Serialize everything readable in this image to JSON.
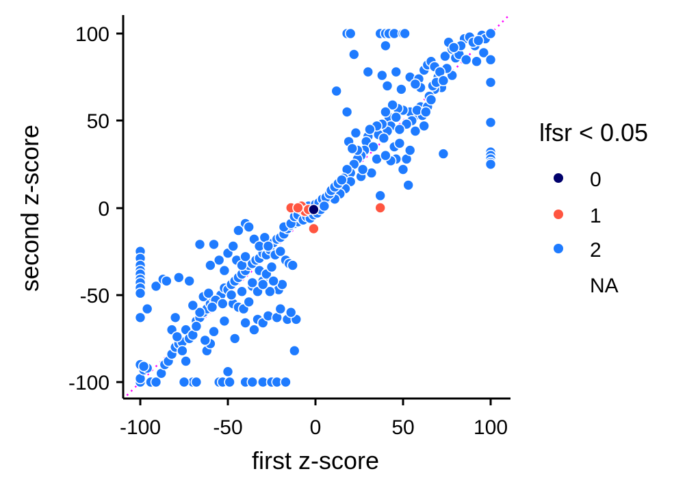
{
  "chart_data": {
    "type": "scatter",
    "title": "",
    "xlabel": "first z-score",
    "ylabel": "second z-score",
    "xlim": [
      -110,
      110
    ],
    "ylim": [
      -110,
      110
    ],
    "x_ticks": [
      "-100",
      "-50",
      "0",
      "50",
      "100"
    ],
    "y_ticks": [
      "100",
      "50",
      "0",
      "-50",
      "-100"
    ],
    "grid": false,
    "reference_line": {
      "type": "identity",
      "style": "dotted",
      "color": "#ff00ff"
    },
    "legend": {
      "title": "lfsr < 0.05",
      "placement": "right",
      "entries": [
        {
          "label": "0",
          "color": "#00006b"
        },
        {
          "label": "1",
          "color": "#ff5540"
        },
        {
          "label": "2",
          "color": "#1e7bff"
        },
        {
          "label": "NA",
          "color": ""
        }
      ]
    },
    "series": [
      {
        "name": "2",
        "color": "#1e7bff",
        "points": [
          [
            18,
            100
          ],
          [
            20,
            100
          ],
          [
            22,
            88
          ],
          [
            37,
            100
          ],
          [
            40,
            100
          ],
          [
            42,
            100
          ],
          [
            45,
            100
          ],
          [
            50,
            100
          ],
          [
            51,
            100
          ],
          [
            40,
            93
          ],
          [
            30,
            78
          ],
          [
            12,
            67
          ],
          [
            38,
            76
          ],
          [
            41,
            70
          ],
          [
            46,
            78
          ],
          [
            49,
            68
          ],
          [
            54,
            75
          ],
          [
            59,
            74
          ],
          [
            60,
            69
          ],
          [
            62,
            79
          ],
          [
            57,
            71
          ],
          [
            64,
            82
          ],
          [
            66,
            84
          ],
          [
            68,
            81
          ],
          [
            74,
            87
          ],
          [
            78,
            91
          ],
          [
            85,
            97
          ],
          [
            88,
            98
          ],
          [
            91,
            93
          ],
          [
            95,
            99
          ],
          [
            97,
            97
          ],
          [
            100,
            100
          ],
          [
            96,
            89
          ],
          [
            100,
            85
          ],
          [
            92,
            84
          ],
          [
            100,
            72
          ],
          [
            100,
            49
          ],
          [
            100,
            32
          ],
          [
            100,
            30
          ],
          [
            100,
            28
          ],
          [
            100,
            26
          ],
          [
            100,
            25
          ],
          [
            73,
            31
          ],
          [
            53,
            13
          ],
          [
            45,
            35
          ],
          [
            48,
            37
          ],
          [
            72,
            69
          ],
          [
            78,
            76
          ],
          [
            80,
            86
          ],
          [
            68,
            68
          ],
          [
            65,
            64
          ],
          [
            60,
            58
          ],
          [
            56,
            52
          ],
          [
            54,
            55
          ],
          [
            50,
            56
          ],
          [
            47,
            57
          ],
          [
            44,
            59
          ],
          [
            42,
            52
          ],
          [
            43,
            47
          ],
          [
            41,
            44
          ],
          [
            38,
            48
          ],
          [
            36,
            42
          ],
          [
            35,
            47
          ],
          [
            30,
            41
          ],
          [
            31,
            45
          ],
          [
            29,
            38
          ],
          [
            55,
            50
          ],
          [
            57,
            44
          ],
          [
            62,
            47
          ],
          [
            61,
            53
          ],
          [
            58,
            56
          ],
          [
            52,
            48
          ],
          [
            48,
            45
          ],
          [
            46,
            52
          ],
          [
            40,
            55
          ],
          [
            39,
            40
          ],
          [
            33,
            35
          ],
          [
            28,
            33
          ],
          [
            26,
            30
          ],
          [
            24,
            28
          ],
          [
            22,
            25
          ],
          [
            20,
            20
          ],
          [
            18,
            22
          ],
          [
            16,
            17
          ],
          [
            14,
            15
          ],
          [
            12,
            11
          ],
          [
            10,
            9
          ],
          [
            8,
            6
          ],
          [
            6,
            5
          ],
          [
            4,
            2
          ],
          [
            2,
            1
          ],
          [
            19,
            38
          ],
          [
            18,
            55
          ],
          [
            23,
            43
          ],
          [
            26,
            18
          ],
          [
            20,
            15
          ],
          [
            17,
            11
          ],
          [
            14,
            8
          ],
          [
            11,
            5
          ],
          [
            37,
            7
          ],
          [
            32,
            20
          ],
          [
            27,
            22
          ],
          [
            24,
            33
          ],
          [
            21,
            34
          ],
          [
            35,
            28
          ],
          [
            46,
            28
          ],
          [
            50,
            22
          ],
          [
            52,
            28
          ],
          [
            54,
            33
          ],
          [
            43,
            27
          ],
          [
            40,
            30
          ],
          [
            70,
            75
          ],
          [
            75,
            80
          ],
          [
            82,
            88
          ],
          [
            86,
            85
          ],
          [
            83,
            93
          ],
          [
            76,
            95
          ],
          [
            79,
            92
          ],
          [
            90,
            95
          ],
          [
            93,
            96
          ],
          [
            64,
            58
          ],
          [
            66,
            62
          ],
          [
            63,
            55
          ],
          [
            67,
            70
          ],
          [
            69,
            72
          ],
          [
            71,
            78
          ],
          [
            73,
            73
          ],
          [
            -100,
            -100
          ],
          [
            -100,
            -98
          ],
          [
            -98,
            -93
          ],
          [
            -96,
            -92
          ],
          [
            -94,
            -100
          ],
          [
            -91,
            -100
          ],
          [
            -88,
            -95
          ],
          [
            -86,
            -90
          ],
          [
            -84,
            -88
          ],
          [
            -82,
            -84
          ],
          [
            -80,
            -80
          ],
          [
            -78,
            -78
          ],
          [
            -76,
            -77
          ],
          [
            -74,
            -70
          ],
          [
            -72,
            -75
          ],
          [
            -70,
            -73
          ],
          [
            -68,
            -65
          ],
          [
            -66,
            -63
          ],
          [
            -64,
            -60
          ],
          [
            -62,
            -58
          ],
          [
            -60,
            -55
          ],
          [
            -58,
            -52
          ],
          [
            -56,
            -52
          ],
          [
            -54,
            -50
          ],
          [
            -52,
            -46
          ],
          [
            -50,
            -47
          ],
          [
            -48,
            -44
          ],
          [
            -46,
            -42
          ],
          [
            -44,
            -40
          ],
          [
            -42,
            -38
          ],
          [
            -40,
            -36
          ],
          [
            -38,
            -33
          ],
          [
            -36,
            -32
          ],
          [
            -34,
            -30
          ],
          [
            -32,
            -29
          ],
          [
            -30,
            -26
          ],
          [
            -28,
            -27
          ],
          [
            -26,
            -24
          ],
          [
            -24,
            -20
          ],
          [
            -22,
            -18
          ],
          [
            -20,
            -17
          ],
          [
            -18,
            -15
          ],
          [
            -16,
            -12
          ],
          [
            -14,
            -10
          ],
          [
            -12,
            -9
          ],
          [
            -10,
            -8
          ],
          [
            -8,
            -6
          ],
          [
            -6,
            -4
          ],
          [
            -4,
            -3
          ],
          [
            -2,
            -2
          ],
          [
            -100,
            -25
          ],
          [
            -100,
            -29
          ],
          [
            -100,
            -33
          ],
          [
            -100,
            -36
          ],
          [
            -100,
            -38
          ],
          [
            -100,
            -41
          ],
          [
            -100,
            -43
          ],
          [
            -100,
            -46
          ],
          [
            -100,
            -49
          ],
          [
            -100,
            -63
          ],
          [
            -100,
            -90
          ],
          [
            -98,
            -91
          ],
          [
            -96,
            -58
          ],
          [
            -91,
            -45
          ],
          [
            -87,
            -41
          ],
          [
            -85,
            -42
          ],
          [
            -78,
            -40
          ],
          [
            -72,
            -42
          ],
          [
            -80,
            -63
          ],
          [
            -82,
            -70
          ],
          [
            -79,
            -74
          ],
          [
            -76,
            -82
          ],
          [
            -74,
            -88
          ],
          [
            -70,
            -100
          ],
          [
            -68,
            -100
          ],
          [
            -75,
            -100
          ],
          [
            -55,
            -100
          ],
          [
            -53,
            -100
          ],
          [
            -49,
            -100
          ],
          [
            -40,
            -100
          ],
          [
            -36,
            -100
          ],
          [
            -30,
            -100
          ],
          [
            -25,
            -100
          ],
          [
            -22,
            -100
          ],
          [
            -17,
            -100
          ],
          [
            -50,
            -94
          ],
          [
            -62,
            -82
          ],
          [
            -60,
            -78
          ],
          [
            -58,
            -71
          ],
          [
            -63,
            -76
          ],
          [
            -68,
            -68
          ],
          [
            -64,
            -51
          ],
          [
            -61,
            -49
          ],
          [
            -57,
            -53
          ],
          [
            -52,
            -65
          ],
          [
            -46,
            -75
          ],
          [
            -47,
            -55
          ],
          [
            -44,
            -57
          ],
          [
            -41,
            -58
          ],
          [
            -38,
            -54
          ],
          [
            -36,
            -45
          ],
          [
            -33,
            -48
          ],
          [
            -30,
            -42
          ],
          [
            -32,
            -36
          ],
          [
            -28,
            -38
          ],
          [
            -25,
            -34
          ],
          [
            -40,
            -66
          ],
          [
            -35,
            -70
          ],
          [
            -33,
            -64
          ],
          [
            -30,
            -66
          ],
          [
            -27,
            -62
          ],
          [
            -22,
            -63
          ],
          [
            -20,
            -58
          ],
          [
            -16,
            -64
          ],
          [
            -11,
            -64
          ],
          [
            -12,
            -82
          ],
          [
            -14,
            -60
          ],
          [
            -21,
            -47
          ],
          [
            -19,
            -44
          ],
          [
            -24,
            -42
          ],
          [
            -26,
            -48
          ],
          [
            -55,
            -30
          ],
          [
            -50,
            -26
          ],
          [
            -47,
            -22
          ],
          [
            -45,
            -30
          ],
          [
            -42,
            -33
          ],
          [
            -40,
            -9
          ],
          [
            -38,
            -11
          ],
          [
            -35,
            -18
          ],
          [
            -32,
            -22
          ],
          [
            -29,
            -17
          ],
          [
            -27,
            -22
          ],
          [
            -23,
            -27
          ],
          [
            -20,
            -25
          ],
          [
            -17,
            -30
          ],
          [
            -15,
            -32
          ],
          [
            -13,
            -33
          ],
          [
            -18,
            -11
          ],
          [
            -14,
            -9
          ],
          [
            -12,
            -5
          ],
          [
            -10,
            -4
          ],
          [
            -30,
            -44
          ],
          [
            -36,
            -43
          ],
          [
            -42,
            -48
          ],
          [
            -48,
            -50
          ],
          [
            -53,
            -55
          ],
          [
            -59,
            -57
          ],
          [
            -66,
            -60
          ],
          [
            -70,
            -56
          ],
          [
            -60,
            -33
          ],
          [
            -52,
            -36
          ],
          [
            -58,
            -21
          ],
          [
            -66,
            -21
          ],
          [
            -44,
            -13
          ],
          [
            -40,
            -28
          ],
          [
            -8,
            -1
          ],
          [
            -6,
            0
          ],
          [
            -4,
            1
          ],
          [
            -2,
            -1
          ],
          [
            0,
            2
          ],
          [
            2,
            3
          ],
          [
            4,
            5
          ],
          [
            6,
            6
          ],
          [
            8,
            8
          ],
          [
            9,
            10
          ],
          [
            11,
            12
          ],
          [
            13,
            14
          ],
          [
            15,
            16
          ],
          [
            -7,
            -7
          ],
          [
            -5,
            -5
          ],
          [
            -3,
            -6
          ],
          [
            -1,
            -4
          ],
          [
            1,
            -3
          ],
          [
            3,
            -1
          ],
          [
            5,
            1
          ]
        ]
      },
      {
        "name": "1",
        "color": "#ff5540",
        "points": [
          [
            -14,
            0
          ],
          [
            -8,
            1
          ],
          [
            -6,
            -2
          ],
          [
            -1,
            -12
          ],
          [
            37,
            0
          ],
          [
            -10,
            0
          ],
          [
            -4,
            -1
          ]
        ]
      },
      {
        "name": "0",
        "color": "#00006b",
        "points": [
          [
            -1,
            -1
          ]
        ]
      }
    ]
  }
}
